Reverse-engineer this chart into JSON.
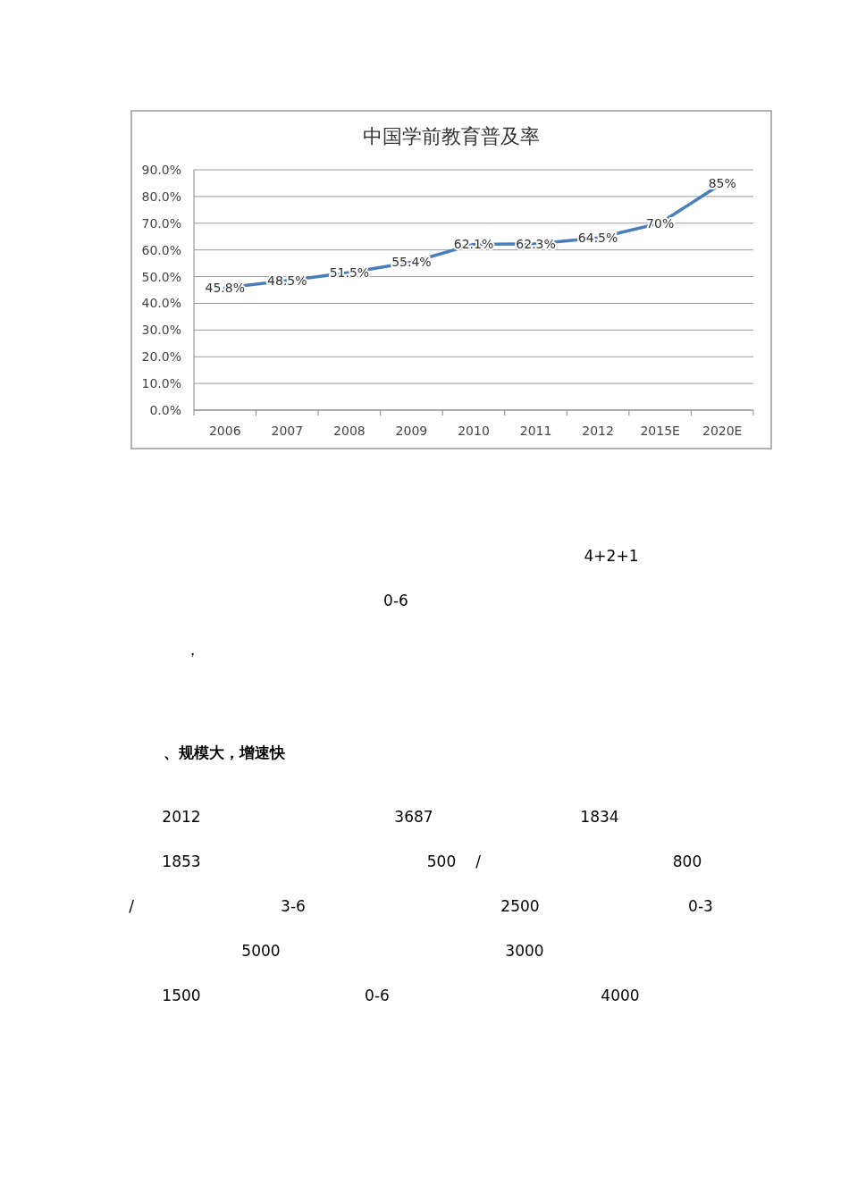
{
  "chart_data": {
    "type": "line",
    "title": "中国学前教育普及率",
    "categories": [
      "2006",
      "2007",
      "2008",
      "2009",
      "2010",
      "2011",
      "2012",
      "2015E",
      "2020E"
    ],
    "series": [
      {
        "color": "#4a7ebb",
        "values": [
          45.8,
          48.5,
          51.5,
          55.4,
          62.1,
          62.3,
          64.5,
          70,
          85
        ],
        "value_labels": [
          "45.8%",
          "48.5%",
          "51.5%",
          "55.4%",
          "62.1%",
          "62.3%",
          "64.5%",
          "70%",
          "85%"
        ]
      }
    ],
    "ylim": [
      0,
      90
    ],
    "yticks": [
      {
        "value": 0,
        "label": "0.0%"
      },
      {
        "value": 10,
        "label": "10.0%"
      },
      {
        "value": 20,
        "label": "20.0%"
      },
      {
        "value": 30,
        "label": "30.0%"
      },
      {
        "value": 40,
        "label": "40.0%"
      },
      {
        "value": 50,
        "label": "50.0%"
      },
      {
        "value": 60,
        "label": "60.0%"
      },
      {
        "value": 70,
        "label": "70.0%"
      },
      {
        "value": 80,
        "label": "80.0%"
      },
      {
        "value": 90,
        "label": "90.0%"
      }
    ],
    "grid": "y",
    "marker": "none",
    "line_style": "solid",
    "annotations": [
      "4+2+1",
      "0-6",
      "，",
      "、规模大，增速快",
      "2012",
      "3687",
      "1834",
      "1853",
      "500",
      "/",
      "800",
      "/",
      "3-6",
      "2500",
      "0-3",
      "5000",
      "3000",
      "1500",
      "0-6",
      "4000"
    ]
  }
}
